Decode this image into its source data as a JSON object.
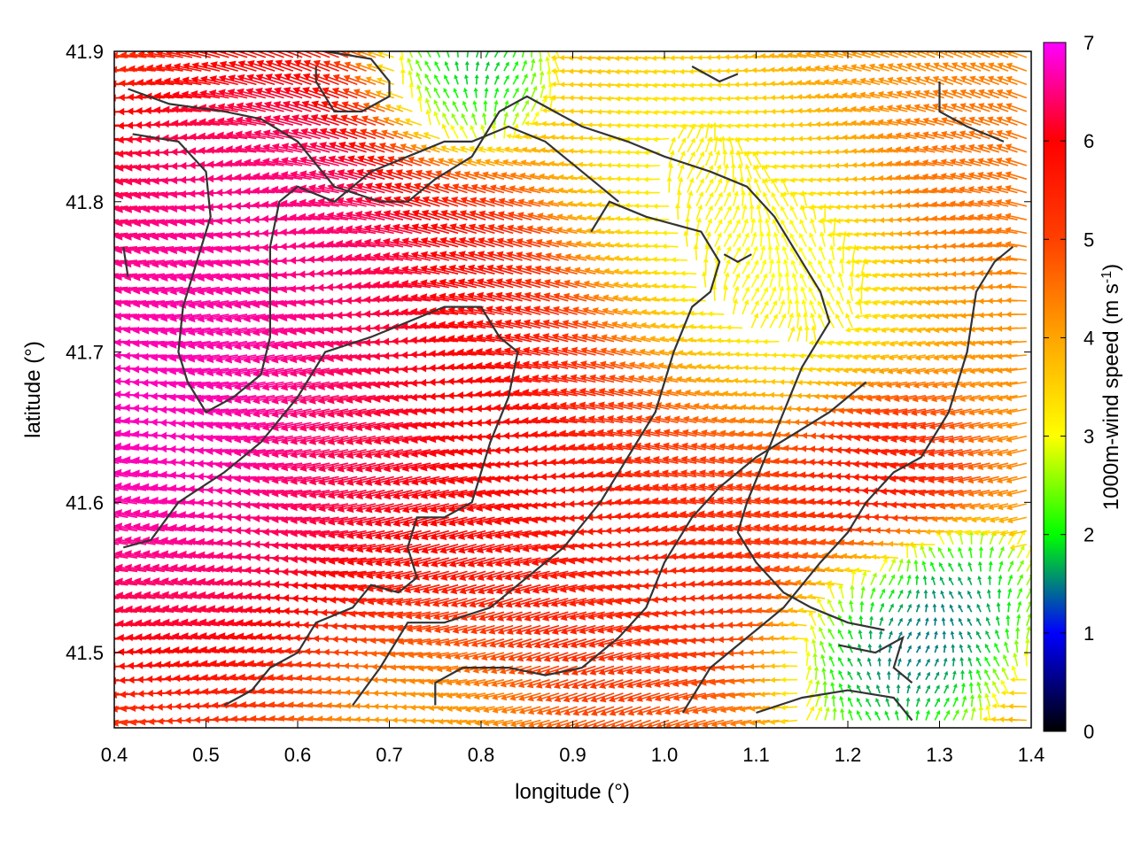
{
  "chart_data": {
    "type": "heatmap",
    "subtype": "wind-vector-field",
    "xlabel": "longitude (°)",
    "ylabel": "latitude (°)",
    "xlim": [
      0.4,
      1.4
    ],
    "ylim": [
      41.45,
      41.9
    ],
    "xticks": [
      0.4,
      0.5,
      0.6,
      0.7,
      0.8,
      0.9,
      1.0,
      1.1,
      1.2,
      1.3,
      1.4
    ],
    "xtick_labels": [
      "0.4",
      "0.5",
      "0.6",
      "0.7",
      "0.8",
      "0.9",
      "1.0",
      "1.1",
      "1.2",
      "1.3",
      "1.4"
    ],
    "yticks": [
      41.5,
      41.6,
      41.7,
      41.8,
      41.9
    ],
    "ytick_labels": [
      "41.5",
      "41.6",
      "41.7",
      "41.8",
      "41.9"
    ],
    "colorbar": {
      "label_main": "1000m-wind speed (m s",
      "label_sup": "-1",
      "label_end": ")",
      "range": [
        0,
        7
      ],
      "ticks": [
        0,
        1,
        2,
        3,
        4,
        5,
        6,
        7
      ],
      "tick_labels": [
        "0",
        "1",
        "2",
        "3",
        "4",
        "5",
        "6",
        "7"
      ],
      "colormap_stops": [
        {
          "v": 0.0,
          "color": "#000000"
        },
        {
          "v": 1.0,
          "color": "#0000ff"
        },
        {
          "v": 1.5,
          "color": "#008080"
        },
        {
          "v": 2.0,
          "color": "#00ff00"
        },
        {
          "v": 3.0,
          "color": "#ffff00"
        },
        {
          "v": 4.0,
          "color": "#ffa500"
        },
        {
          "v": 5.0,
          "color": "#ff4000"
        },
        {
          "v": 6.0,
          "color": "#ff0000"
        },
        {
          "v": 7.0,
          "color": "#ff00ff"
        }
      ]
    },
    "wind_field": {
      "grid": {
        "lon_start": 0.405,
        "lon_step": 0.01,
        "lon_count": 100,
        "lat_start": 41.455,
        "lat_step": 0.009,
        "lat_count": 50
      },
      "speed_centers": [
        {
          "lon": 0.48,
          "lat": 41.65,
          "speed": 7.2,
          "radius": 0.2
        },
        {
          "lon": 0.58,
          "lat": 41.78,
          "speed": 6.8,
          "radius": 0.16
        },
        {
          "lon": 0.78,
          "lat": 41.62,
          "speed": 6.2,
          "radius": 0.2
        },
        {
          "lon": 1.05,
          "lat": 41.6,
          "speed": 5.6,
          "radius": 0.13
        },
        {
          "lon": 1.24,
          "lat": 41.62,
          "speed": 6.0,
          "radius": 0.07
        },
        {
          "lon": 1.02,
          "lat": 41.82,
          "speed": 3.0,
          "radius": 0.1
        },
        {
          "lon": 1.1,
          "lat": 41.72,
          "speed": 2.6,
          "radius": 0.12
        },
        {
          "lon": 0.78,
          "lat": 41.88,
          "speed": 1.0,
          "radius": 0.07
        },
        {
          "lon": 1.25,
          "lat": 41.5,
          "speed": 1.0,
          "radius": 0.08
        },
        {
          "lon": 1.32,
          "lat": 41.53,
          "speed": 1.2,
          "radius": 0.06
        },
        {
          "lon": 1.36,
          "lat": 41.82,
          "speed": 4.6,
          "radius": 0.07
        },
        {
          "lon": 0.75,
          "lat": 41.46,
          "speed": 3.6,
          "radius": 0.1
        }
      ],
      "background_speed": 4.2,
      "prevailing_direction": "from east toward west",
      "calm_zone_direction": "northward"
    },
    "terrain_contours": [
      [
        [
          0.415,
          41.875
        ],
        [
          0.46,
          41.865
        ],
        [
          0.52,
          41.86
        ],
        [
          0.56,
          41.855
        ],
        [
          0.6,
          41.84
        ],
        [
          0.64,
          41.81
        ],
        [
          0.69,
          41.8
        ],
        [
          0.72,
          41.8
        ],
        [
          0.75,
          41.815
        ],
        [
          0.79,
          41.83
        ],
        [
          0.82,
          41.86
        ],
        [
          0.85,
          41.87
        ],
        [
          0.88,
          41.86
        ],
        [
          0.91,
          41.85
        ],
        [
          0.96,
          41.84
        ],
        [
          1.0,
          41.83
        ],
        [
          1.05,
          41.82
        ],
        [
          1.09,
          41.81
        ],
        [
          1.12,
          41.79
        ],
        [
          1.15,
          41.76
        ],
        [
          1.17,
          41.74
        ],
        [
          1.18,
          41.72
        ],
        [
          1.15,
          41.69
        ],
        [
          1.13,
          41.66
        ],
        [
          1.11,
          41.63
        ],
        [
          1.09,
          41.6
        ],
        [
          1.08,
          41.58
        ],
        [
          1.1,
          41.56
        ],
        [
          1.13,
          41.54
        ],
        [
          1.16,
          41.53
        ],
        [
          1.2,
          41.52
        ],
        [
          1.24,
          41.515
        ]
      ],
      [
        [
          0.42,
          41.845
        ],
        [
          0.47,
          41.84
        ],
        [
          0.5,
          41.82
        ],
        [
          0.505,
          41.79
        ],
        [
          0.49,
          41.76
        ],
        [
          0.475,
          41.73
        ],
        [
          0.47,
          41.7
        ],
        [
          0.48,
          41.68
        ],
        [
          0.5,
          41.66
        ],
        [
          0.53,
          41.67
        ],
        [
          0.56,
          41.685
        ],
        [
          0.57,
          41.71
        ],
        [
          0.57,
          41.74
        ],
        [
          0.57,
          41.77
        ],
        [
          0.58,
          41.8
        ],
        [
          0.6,
          41.81
        ],
        [
          0.64,
          41.8
        ],
        [
          0.68,
          41.82
        ],
        [
          0.72,
          41.83
        ],
        [
          0.76,
          41.84
        ],
        [
          0.79,
          41.84
        ],
        [
          0.83,
          41.85
        ],
        [
          0.87,
          41.84
        ],
        [
          0.91,
          41.82
        ],
        [
          0.95,
          41.8
        ]
      ],
      [
        [
          0.41,
          41.57
        ],
        [
          0.44,
          41.575
        ],
        [
          0.47,
          41.6
        ],
        [
          0.52,
          41.62
        ],
        [
          0.56,
          41.64
        ],
        [
          0.6,
          41.67
        ],
        [
          0.63,
          41.7
        ],
        [
          0.68,
          41.71
        ],
        [
          0.72,
          41.72
        ],
        [
          0.76,
          41.73
        ],
        [
          0.8,
          41.73
        ],
        [
          0.82,
          41.71
        ],
        [
          0.84,
          41.7
        ],
        [
          0.83,
          41.67
        ],
        [
          0.81,
          41.64
        ],
        [
          0.79,
          41.6
        ],
        [
          0.76,
          41.59
        ],
        [
          0.73,
          41.59
        ],
        [
          0.72,
          41.57
        ],
        [
          0.73,
          41.55
        ],
        [
          0.71,
          41.54
        ],
        [
          0.68,
          41.545
        ],
        [
          0.66,
          41.53
        ],
        [
          0.62,
          41.52
        ],
        [
          0.6,
          41.5
        ],
        [
          0.57,
          41.49
        ],
        [
          0.55,
          41.475
        ],
        [
          0.52,
          41.465
        ]
      ],
      [
        [
          0.66,
          41.465
        ],
        [
          0.69,
          41.49
        ],
        [
          0.72,
          41.52
        ],
        [
          0.76,
          41.52
        ],
        [
          0.81,
          41.53
        ],
        [
          0.85,
          41.55
        ],
        [
          0.89,
          41.57
        ],
        [
          0.93,
          41.6
        ],
        [
          0.96,
          41.63
        ],
        [
          0.99,
          41.66
        ],
        [
          1.01,
          41.7
        ],
        [
          1.03,
          41.73
        ],
        [
          1.05,
          41.74
        ],
        [
          1.06,
          41.76
        ],
        [
          1.04,
          41.78
        ],
        [
          0.98,
          41.79
        ],
        [
          0.94,
          41.8
        ],
        [
          0.92,
          41.78
        ]
      ],
      [
        [
          0.75,
          41.465
        ],
        [
          0.75,
          41.48
        ],
        [
          0.78,
          41.49
        ],
        [
          0.83,
          41.49
        ],
        [
          0.87,
          41.485
        ],
        [
          0.91,
          41.49
        ],
        [
          0.95,
          41.51
        ],
        [
          0.98,
          41.53
        ],
        [
          1.0,
          41.56
        ],
        [
          1.03,
          41.59
        ],
        [
          1.06,
          41.61
        ],
        [
          1.1,
          41.63
        ],
        [
          1.14,
          41.645
        ],
        [
          1.18,
          41.66
        ],
        [
          1.22,
          41.68
        ]
      ],
      [
        [
          1.02,
          41.46
        ],
        [
          1.05,
          41.49
        ],
        [
          1.09,
          41.51
        ],
        [
          1.13,
          41.53
        ],
        [
          1.17,
          41.56
        ],
        [
          1.2,
          41.58
        ],
        [
          1.22,
          41.6
        ],
        [
          1.25,
          41.62
        ],
        [
          1.28,
          41.63
        ],
        [
          1.31,
          41.66
        ],
        [
          1.33,
          41.7
        ],
        [
          1.34,
          41.74
        ],
        [
          1.36,
          41.76
        ],
        [
          1.38,
          41.77
        ]
      ],
      [
        [
          1.1,
          41.46
        ],
        [
          1.15,
          41.47
        ],
        [
          1.2,
          41.475
        ],
        [
          1.25,
          41.47
        ],
        [
          1.27,
          41.455
        ]
      ],
      [
        [
          1.19,
          41.505
        ],
        [
          1.23,
          41.5
        ],
        [
          1.26,
          41.51
        ],
        [
          1.25,
          41.49
        ],
        [
          1.27,
          41.48
        ]
      ],
      [
        [
          0.41,
          41.77
        ],
        [
          0.415,
          41.75
        ]
      ],
      [
        [
          0.63,
          41.9
        ],
        [
          0.68,
          41.895
        ],
        [
          0.7,
          41.88
        ],
        [
          0.7,
          41.87
        ],
        [
          0.67,
          41.86
        ],
        [
          0.64,
          41.86
        ],
        [
          0.62,
          41.88
        ],
        [
          0.62,
          41.89
        ]
      ],
      [
        [
          1.03,
          41.89
        ],
        [
          1.06,
          41.88
        ],
        [
          1.08,
          41.885
        ]
      ],
      [
        [
          1.065,
          41.765
        ],
        [
          1.08,
          41.76
        ],
        [
          1.095,
          41.765
        ]
      ],
      [
        [
          1.3,
          41.88
        ],
        [
          1.3,
          41.86
        ],
        [
          1.33,
          41.85
        ],
        [
          1.37,
          41.84
        ]
      ]
    ]
  }
}
